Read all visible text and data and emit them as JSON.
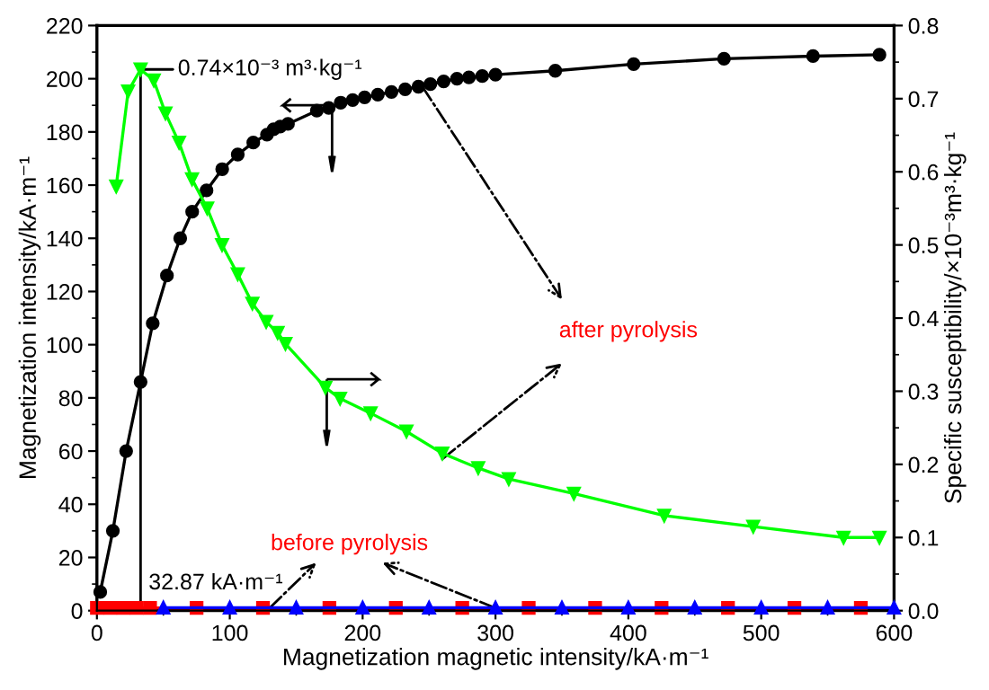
{
  "chart_data": {
    "type": "line",
    "xlabel": "Magnetization magnetic intensity/kA·m⁻¹",
    "ylabel": "Magnetization intensity/kA·m⁻¹",
    "y2label": "Specific susceptibility/×10⁻³m³·kg⁻¹",
    "xlim": [
      0,
      600
    ],
    "xticks": [
      0,
      100,
      200,
      300,
      400,
      500,
      600
    ],
    "ylim": [
      0,
      220
    ],
    "yticks": [
      0,
      20,
      40,
      60,
      80,
      100,
      120,
      140,
      160,
      180,
      200,
      220
    ],
    "y2lim": [
      0,
      0.8
    ],
    "y2ticks": [
      {
        "value": 0,
        "label": "0.0"
      },
      0.1,
      0.2,
      0.3,
      0.4,
      0.5,
      0.6,
      0.7,
      0.8
    ],
    "series": [
      {
        "color": "#000000",
        "marker": "circle",
        "x": [
          2.5,
          12,
          22,
          32.87,
          42,
          52.7,
          62.7,
          71.7,
          82.5,
          94.3,
          106,
          117.7,
          128,
          133,
          138,
          143.8,
          165.5,
          174.5,
          183.5,
          192.5,
          201.5,
          211.4,
          221.7,
          232,
          242,
          251,
          261,
          271,
          280,
          290,
          300,
          345,
          404,
          472,
          539,
          589
        ],
        "values": [
          7,
          30,
          60,
          86,
          108,
          126,
          140,
          150,
          158,
          166,
          171.5,
          176,
          179,
          181,
          182,
          183,
          188,
          189,
          191,
          192,
          193,
          194,
          195,
          196,
          197,
          198,
          199,
          200,
          200.5,
          201,
          201.5,
          203,
          205.5,
          207.5,
          208.5,
          209
        ]
      },
      {
        "color": "#00ff00",
        "marker": "triangle_down",
        "axis": "y2",
        "x": [
          14.5,
          23.5,
          32.87,
          42.8,
          51.6,
          61.8,
          71.6,
          83,
          94.2,
          106,
          117,
          127.4,
          136,
          141.9,
          172,
          183,
          206,
          233,
          260,
          287,
          310,
          359,
          427,
          494,
          562,
          589
        ],
        "values": [
          0.58,
          0.71,
          0.74,
          0.725,
          0.68,
          0.64,
          0.59,
          0.55,
          0.5,
          0.46,
          0.42,
          0.395,
          0.38,
          0.365,
          0.305,
          0.29,
          0.27,
          0.245,
          0.215,
          0.195,
          0.18,
          0.16,
          0.13,
          0.115,
          0.1,
          0.1
        ]
      },
      {
        "color": "#ff0000",
        "marker": "square",
        "x": [
          0,
          10,
          20,
          30,
          40,
          75,
          125,
          175,
          225,
          275,
          325,
          375,
          425,
          475,
          525,
          575
        ],
        "values": [
          1,
          1,
          1,
          1,
          1,
          1,
          1,
          1,
          1,
          1,
          1,
          1,
          1,
          1,
          1,
          1
        ]
      },
      {
        "color": "#0000ff",
        "marker": "triangle",
        "axis": "y2",
        "x": [
          50,
          100,
          150,
          200,
          250,
          300,
          350,
          400,
          450,
          500,
          550,
          600
        ],
        "values": [
          0.004,
          0.004,
          0.004,
          0.004,
          0.004,
          0.004,
          0.004,
          0.004,
          0.004,
          0.004,
          0.004,
          0.004
        ]
      }
    ],
    "ref_lines": [
      {
        "axis": "x",
        "value": 32.87,
        "label": "32.87 kA·m⁻¹",
        "color": "#000000"
      }
    ],
    "annotations": [
      {
        "text": "0.74×10⁻³ m³·kg⁻¹",
        "x": 32.87,
        "y": 203.5
      },
      {
        "text": "after pyrolysis",
        "x": 245,
        "y": 197
      },
      {
        "text": "before pyrolysis",
        "x": 130,
        "y": 1
      }
    ]
  }
}
